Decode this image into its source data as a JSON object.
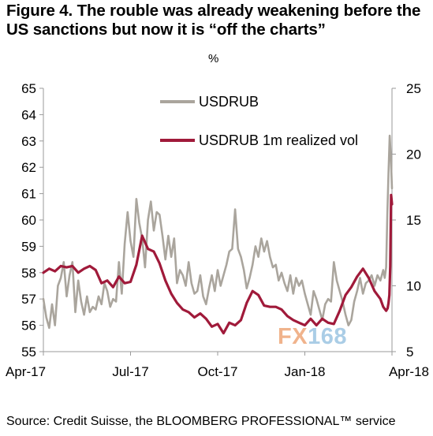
{
  "title": "Figure 4. The rouble was already weakening before the US sanctions but now it is “off the charts”",
  "source": "Source: Credit Suisse, the BLOOMBERG PROFESSIONAL™ service",
  "watermark": {
    "part1": "FX",
    "part2": "168"
  },
  "chart_data": {
    "type": "line",
    "right_axis_unit": "%",
    "left_axis": {
      "range": [
        55,
        65
      ],
      "ticks": [
        "55",
        "56",
        "57",
        "58",
        "59",
        "60",
        "61",
        "62",
        "63",
        "64",
        "65"
      ]
    },
    "right_axis": {
      "range": [
        5,
        25
      ],
      "ticks": [
        "5",
        "10",
        "15",
        "20",
        "25"
      ]
    },
    "x_range": [
      0,
      12
    ],
    "x_ticks": [
      {
        "label": "Apr-17",
        "x": 0
      },
      {
        "label": "Jul-17",
        "x": 3
      },
      {
        "label": "Oct-17",
        "x": 6
      },
      {
        "label": "Jan-18",
        "x": 9
      },
      {
        "label": "Apr-18",
        "x": 12
      }
    ],
    "legend": {
      "placement": "top-center",
      "entries": [
        "USDRUB",
        "USDRUB 1m realized vol"
      ]
    },
    "grid": false,
    "series": [
      {
        "name": "USDRUB",
        "axis": "left",
        "color": "#aaa59d",
        "x": [
          0.0,
          0.1,
          0.2,
          0.3,
          0.4,
          0.5,
          0.6,
          0.7,
          0.8,
          0.9,
          1.0,
          1.1,
          1.2,
          1.3,
          1.4,
          1.5,
          1.6,
          1.7,
          1.8,
          1.9,
          2.0,
          2.1,
          2.2,
          2.3,
          2.4,
          2.5,
          2.6,
          2.7,
          2.8,
          2.9,
          3.0,
          3.1,
          3.2,
          3.3,
          3.4,
          3.5,
          3.6,
          3.7,
          3.8,
          3.9,
          4.0,
          4.1,
          4.2,
          4.3,
          4.4,
          4.5,
          4.6,
          4.7,
          4.8,
          4.9,
          5.0,
          5.1,
          5.2,
          5.3,
          5.4,
          5.5,
          5.6,
          5.7,
          5.8,
          5.9,
          6.0,
          6.1,
          6.2,
          6.3,
          6.4,
          6.5,
          6.6,
          6.7,
          6.8,
          6.9,
          7.0,
          7.1,
          7.2,
          7.3,
          7.4,
          7.5,
          7.6,
          7.7,
          7.8,
          7.9,
          8.0,
          8.1,
          8.2,
          8.3,
          8.4,
          8.5,
          8.6,
          8.7,
          8.8,
          8.9,
          9.0,
          9.1,
          9.2,
          9.3,
          9.4,
          9.5,
          9.6,
          9.7,
          9.8,
          9.9,
          10.0,
          10.1,
          10.2,
          10.3,
          10.4,
          10.5,
          10.6,
          10.7,
          10.8,
          10.9,
          11.0,
          11.1,
          11.2,
          11.3,
          11.4,
          11.5,
          11.6,
          11.7,
          11.75,
          11.8,
          11.84,
          11.88,
          11.92,
          11.96,
          12.0
        ],
        "values": [
          57.0,
          56.3,
          55.9,
          56.8,
          56.0,
          57.5,
          57.8,
          58.4,
          57.1,
          57.9,
          58.4,
          56.5,
          57.7,
          56.9,
          56.4,
          57.1,
          56.5,
          56.7,
          56.6,
          57.1,
          56.8,
          57.6,
          57.3,
          56.7,
          57.0,
          56.9,
          58.4,
          57.2,
          59.1,
          60.3,
          59.2,
          58.6,
          60.8,
          59.9,
          59.3,
          58.2,
          60.0,
          60.7,
          59.6,
          60.3,
          60.2,
          59.4,
          58.5,
          59.4,
          58.6,
          59.3,
          57.6,
          58.1,
          57.9,
          57.5,
          58.4,
          57.6,
          57.2,
          57.3,
          57.9,
          57.1,
          56.8,
          57.4,
          57.9,
          57.3,
          58.1,
          57.5,
          57.9,
          58.3,
          58.8,
          58.9,
          60.4,
          58.9,
          58.6,
          58.1,
          57.4,
          57.8,
          58.3,
          59.0,
          58.6,
          59.3,
          58.8,
          59.2,
          58.6,
          58.2,
          58.3,
          57.7,
          58.0,
          57.6,
          57.3,
          57.9,
          57.2,
          57.8,
          57.5,
          57.7,
          57.2,
          56.8,
          56.4,
          57.3,
          57.0,
          56.6,
          56.2,
          56.8,
          57.0,
          56.9,
          58.4,
          57.7,
          57.3,
          56.9,
          56.4,
          56.0,
          56.2,
          56.9,
          57.3,
          57.8,
          57.2,
          57.6,
          57.7,
          57.9,
          57.5,
          57.9,
          57.7,
          58.1,
          57.8,
          58.2,
          60.2,
          61.8,
          63.2,
          62.4,
          61.2
        ]
      },
      {
        "name": "USDRUB 1m realized vol",
        "axis": "right",
        "color": "#a01a3a",
        "x": [
          0.0,
          0.2,
          0.4,
          0.6,
          0.8,
          1.0,
          1.2,
          1.4,
          1.6,
          1.8,
          2.0,
          2.2,
          2.4,
          2.6,
          2.8,
          3.0,
          3.2,
          3.4,
          3.6,
          3.8,
          4.0,
          4.2,
          4.4,
          4.6,
          4.8,
          5.0,
          5.2,
          5.4,
          5.6,
          5.8,
          6.0,
          6.2,
          6.4,
          6.6,
          6.8,
          7.0,
          7.2,
          7.4,
          7.6,
          7.8,
          8.0,
          8.2,
          8.4,
          8.6,
          8.8,
          9.0,
          9.2,
          9.4,
          9.6,
          9.8,
          10.0,
          10.2,
          10.4,
          10.6,
          10.8,
          11.0,
          11.2,
          11.4,
          11.6,
          11.7,
          11.8,
          11.85,
          11.88,
          11.91,
          11.94,
          11.97,
          12.0
        ],
        "values": [
          11.0,
          11.3,
          11.1,
          11.5,
          11.4,
          11.5,
          11.0,
          11.3,
          11.5,
          11.2,
          10.2,
          10.4,
          9.9,
          10.7,
          10.2,
          10.3,
          11.6,
          13.8,
          12.8,
          12.6,
          11.7,
          10.4,
          9.4,
          8.7,
          8.2,
          8.0,
          7.6,
          7.9,
          7.5,
          6.9,
          7.1,
          6.4,
          7.2,
          7.0,
          7.4,
          8.7,
          9.6,
          9.3,
          8.5,
          8.4,
          8.4,
          8.2,
          7.7,
          7.4,
          7.2,
          7.0,
          7.5,
          7.0,
          7.5,
          7.2,
          7.1,
          8.1,
          9.3,
          9.9,
          10.7,
          11.3,
          10.6,
          9.6,
          9.0,
          8.4,
          8.1,
          8.3,
          8.7,
          9.3,
          11.5,
          16.9,
          16.2
        ]
      }
    ]
  }
}
